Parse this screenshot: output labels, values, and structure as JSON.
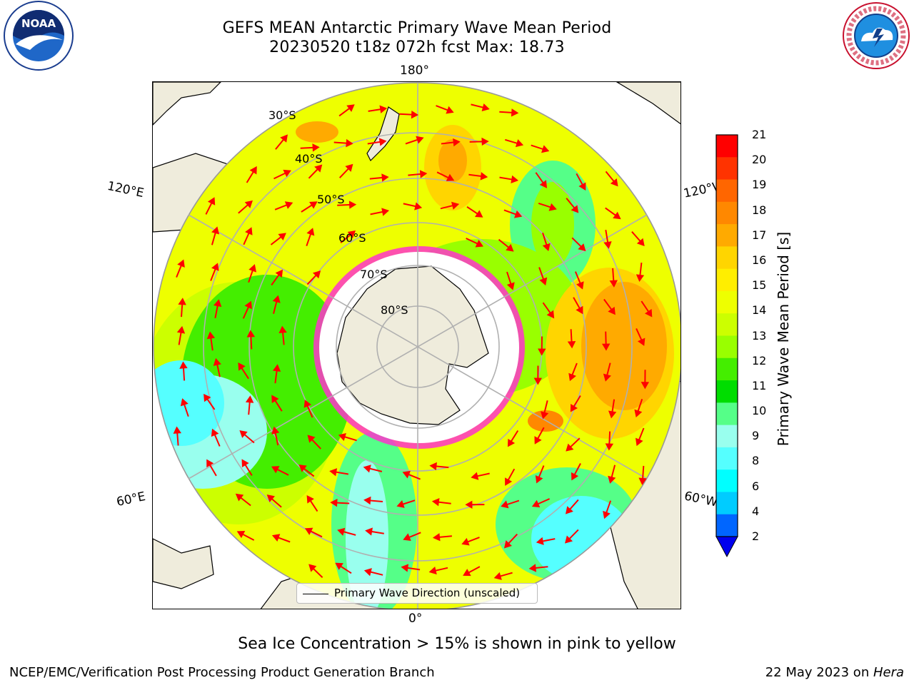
{
  "title": {
    "line1": "GEFS MEAN Antarctic Primary Wave Mean Period",
    "line2": "20230520 t18z 072h fcst   Max: 18.73"
  },
  "logos": {
    "left": {
      "name": "NOAA",
      "icon": "noaa-logo"
    },
    "right": {
      "name": "NATIONAL WEATHER SERVICE",
      "icon": "nws-logo"
    }
  },
  "map": {
    "projection": "south-polar-stereographic",
    "longitude_labels": {
      "top": "180°",
      "upper_left": "120°E",
      "upper_right": "120°W",
      "lower_left": "60°E",
      "lower_right": "60°W",
      "bottom": "0°"
    },
    "latitude_labels": [
      "30°S",
      "40°S",
      "50°S",
      "60°S",
      "70°S",
      "80°S"
    ],
    "legend": "Primary Wave Direction (unscaled)",
    "colors": {
      "land": "#efecdc",
      "ice_edge": "#ff33cc",
      "arrows": "#ff0000",
      "grid": "#b0b0b0"
    }
  },
  "colorbar": {
    "label": "Primary Wave Mean Period [s]",
    "ticks": [
      "21",
      "20",
      "19",
      "18",
      "17",
      "16",
      "15",
      "14",
      "13",
      "12",
      "11",
      "10",
      "9",
      "8",
      "6",
      "4",
      "2"
    ],
    "colors": [
      "#ff0000",
      "#ff3300",
      "#ff6600",
      "#ff8800",
      "#ffaa00",
      "#ffd500",
      "#ffee00",
      "#eeff00",
      "#ccff00",
      "#99ff00",
      "#44ee00",
      "#00dd00",
      "#55ff88",
      "#99ffee",
      "#55ffff",
      "#00ffff",
      "#00ccff",
      "#0066ff",
      "#0000ee"
    ]
  },
  "note": "Sea Ice Concentration > 15% is shown in pink to yellow",
  "footer": {
    "left": "NCEP/EMC/Verification Post Processing Product Generation Branch",
    "right_date": "22 May 2023 on ",
    "right_host": "Hera"
  }
}
